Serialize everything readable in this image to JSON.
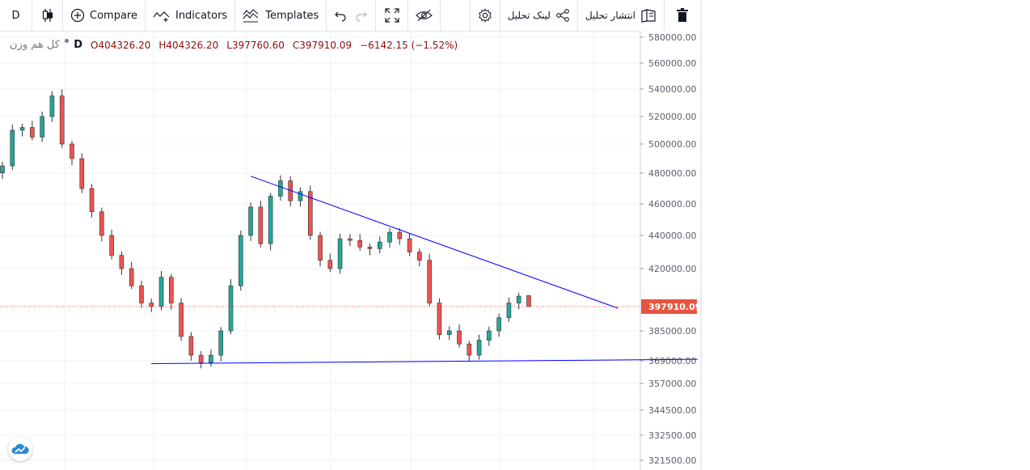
{
  "toolbar": {
    "resolution": "D",
    "compare": "Compare",
    "indicators": "Indicators",
    "templates": "Templates",
    "share_link": "لینک تحلیل",
    "publish": "انتشار تحلیل"
  },
  "legend": {
    "symbol": "کل هم وزن",
    "resolution": "D",
    "open": "O404326.20",
    "high": "H404326.20",
    "low": "L397760.60",
    "close": "C397910.09",
    "change": "−6142.15 (−1.52%)"
  },
  "colors": {
    "up": "#26a69a",
    "down": "#ef5350",
    "trendline": "#0000ff",
    "last_price_tag": "#e55541",
    "grid": "#eef0f3"
  },
  "chart_data": {
    "type": "candlestick",
    "price_axis_labels": [
      580000,
      560000,
      540000,
      520000,
      500000,
      480000,
      460000,
      440000,
      420000,
      385000,
      369000,
      357000,
      344500,
      332500,
      321500
    ],
    "last_price": 397910.09,
    "last_price_label": "397910.09",
    "ohlc_last": {
      "open": 404326.2,
      "high": 404326.2,
      "low": 397760.6,
      "close": 397910.09
    },
    "approx_closes": [
      485000,
      510000,
      512000,
      505000,
      520000,
      535000,
      500000,
      490000,
      470000,
      455000,
      440000,
      428000,
      420000,
      410000,
      400000,
      398000,
      415000,
      400000,
      382000,
      372000,
      368000,
      372000,
      385000,
      410000,
      440000,
      458000,
      435000,
      465000,
      475000,
      462000,
      468000,
      440000,
      425000,
      420000,
      438000,
      437000,
      433000,
      432000,
      436000,
      442000,
      438000,
      430000,
      425000,
      400000,
      383000,
      385000,
      378000,
      372000,
      380000,
      385000,
      392000,
      400000,
      404000,
      397910
    ],
    "trendlines": [
      {
        "name": "resistance",
        "from": {
          "bar": 25,
          "price": 478000
        },
        "to": {
          "bar": 62,
          "price": 397000
        }
      },
      {
        "name": "support",
        "from": {
          "bar": 15,
          "price": 367500
        },
        "to": {
          "bar": 70,
          "price": 369800
        }
      }
    ],
    "grid": true
  }
}
